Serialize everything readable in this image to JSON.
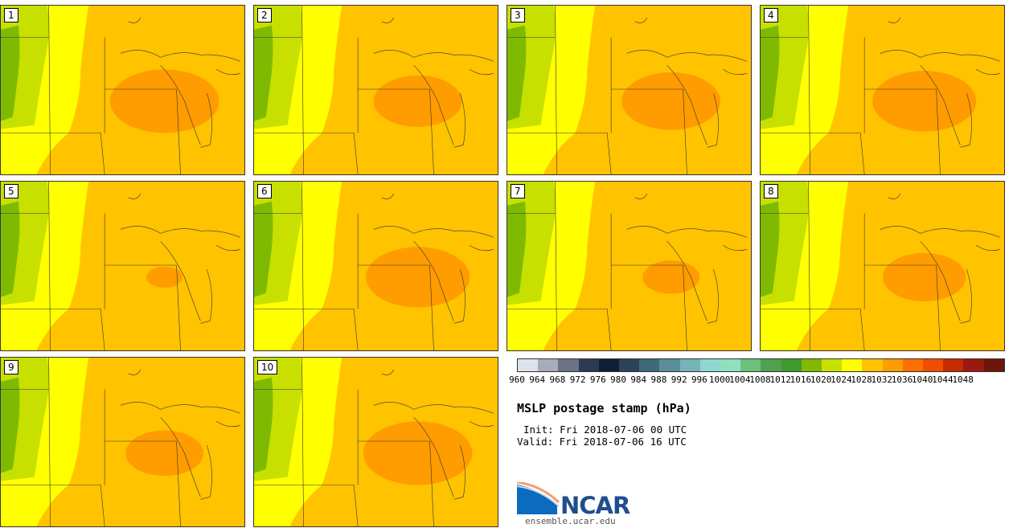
{
  "panels": [
    {
      "label": "1",
      "core": 1.05
    },
    {
      "label": "2",
      "core": 0.85
    },
    {
      "label": "3",
      "core": 0.95
    },
    {
      "label": "4",
      "core": 1.0
    },
    {
      "label": "5",
      "core": 0.35
    },
    {
      "label": "6",
      "core": 1.0
    },
    {
      "label": "7",
      "core": 0.55
    },
    {
      "label": "8",
      "core": 0.8
    },
    {
      "label": "9",
      "core": 0.75
    },
    {
      "label": "10",
      "core": 1.05
    }
  ],
  "colorbar": {
    "colors": [
      "#dde3ea",
      "#a7acb8",
      "#6b7283",
      "#2c3a55",
      "#0f1f33",
      "#2a4358",
      "#3f6978",
      "#5a8d98",
      "#77b3b8",
      "#8fd8cf",
      "#8fe0bf",
      "#6cc07a",
      "#50a050",
      "#3f9a2e",
      "#7fba00",
      "#c7e000",
      "#ffff00",
      "#ffc300",
      "#ff9c00",
      "#ff6e00",
      "#f14c00",
      "#c62a00",
      "#9a1a10",
      "#6d1508"
    ],
    "ticks": [
      "960",
      "964",
      "968",
      "972",
      "976",
      "980",
      "984",
      "988",
      "992",
      "996",
      "1000",
      "1004",
      "1008",
      "1012",
      "1016",
      "1020",
      "1024",
      "1028",
      "1032",
      "1036",
      "1040",
      "1044",
      "1048"
    ]
  },
  "title": "MSLP postage stamp (hPa)",
  "init": "Init: Fri 2018-07-06 00 UTC",
  "valid": "Valid: Fri 2018-07-06 16 UTC",
  "logo": "NCAR",
  "site": "ensemble.ucar.edu"
}
